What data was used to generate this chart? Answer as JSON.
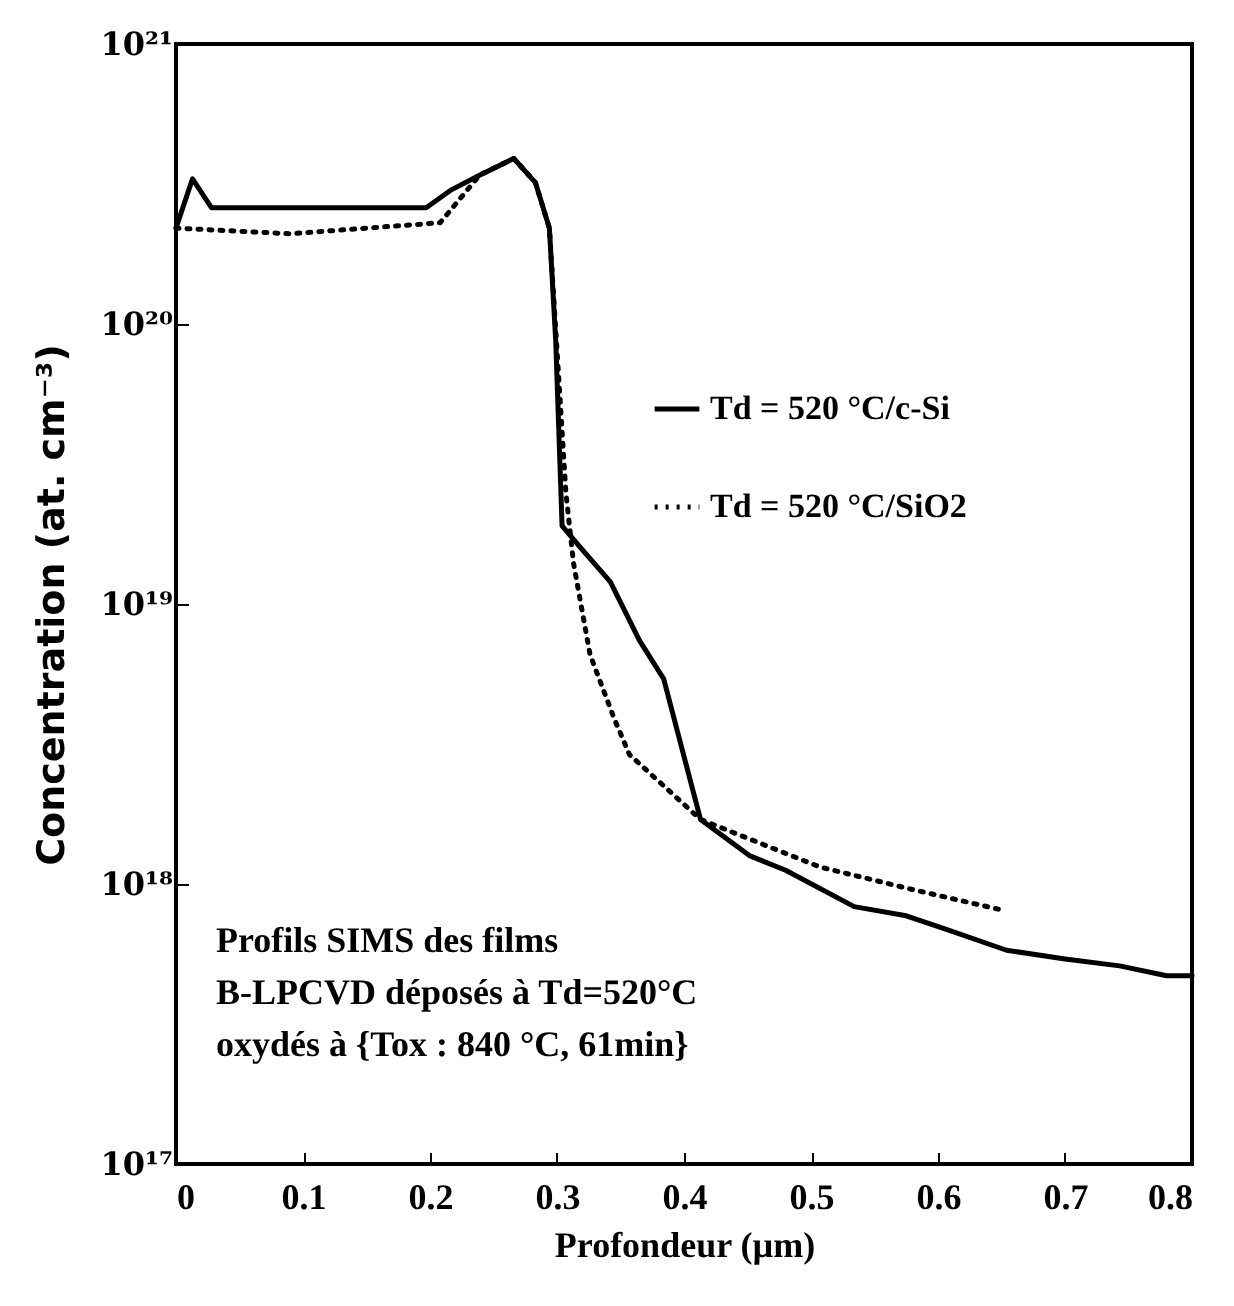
{
  "chart_data": {
    "type": "line",
    "xlabel": "Profondeur (µm)",
    "ylabel": "Concentration (at. cm⁻³)",
    "annotations": [
      "Profils SIMS des films\nB-LPCVD déposés à Td=520°C\noxydés à {Tox : 840 °C, 61min}"
    ],
    "xlim": [
      0,
      0.8
    ],
    "xticks": [
      0,
      0.1,
      0.2,
      0.3,
      0.4,
      0.5,
      0.6,
      0.7,
      0.8
    ],
    "ylim": [
      1e+17,
      1e+21
    ],
    "yticks": [
      {
        "value": 1e+17,
        "label": "10¹⁷"
      },
      {
        "value": 1e+18,
        "label": "10¹⁸"
      },
      {
        "value": 1e+19,
        "label": "10¹⁹"
      },
      {
        "value": 1e+20,
        "label": "10²⁰"
      },
      {
        "value": 1e+21,
        "label": "10²¹"
      }
    ],
    "log": "y",
    "grid": false,
    "legend": "right",
    "marker": "none",
    "series": [
      {
        "name": "Td = 520 °C/c-Si",
        "color": "#000000",
        "line_style": "solid",
        "x": [
          0,
          0.013,
          0.028,
          0.197,
          0.216,
          0.239,
          0.266,
          0.283,
          0.294,
          0.299,
          0.304,
          0.318,
          0.342,
          0.365,
          0.384,
          0.413,
          0.452,
          0.48,
          0.534,
          0.575,
          0.606,
          0.654,
          0.7,
          0.743,
          0.78,
          0.8
        ],
        "values": [
          2.2e+20,
          3.3e+20,
          2.6e+20,
          2.6e+20,
          3e+20,
          3.4e+20,
          3.9e+20,
          3.2e+20,
          2.2e+20,
          8.7e+19,
          1.9e+19,
          1.6e+19,
          1.2e+19,
          7.4e+18,
          5.4e+18,
          1.7e+18,
          1.26e+18,
          1.12e+18,
          8.3e+17,
          7.7e+17,
          6.9e+17,
          5.8e+17,
          5.4e+17,
          5.1e+17,
          4.7e+17,
          4.7e+17
        ]
      },
      {
        "name": "Td = 520 °C/SiO2",
        "color": "#000000",
        "line_style": "dotted",
        "x": [
          0,
          0.09,
          0.208,
          0.239,
          0.266,
          0.283,
          0.294,
          0.307,
          0.313,
          0.326,
          0.345,
          0.357,
          0.413,
          0.507,
          0.578,
          0.649
        ],
        "values": [
          2.2e+20,
          2.1e+20,
          2.3e+20,
          3.4e+20,
          3.9e+20,
          3.2e+20,
          2.2e+20,
          2.5e+19,
          1.4e+19,
          6.6e+18,
          3.9e+18,
          2.9e+18,
          1.7e+18,
          1.15e+18,
          9.6e+17,
          8.1e+17
        ]
      }
    ]
  }
}
